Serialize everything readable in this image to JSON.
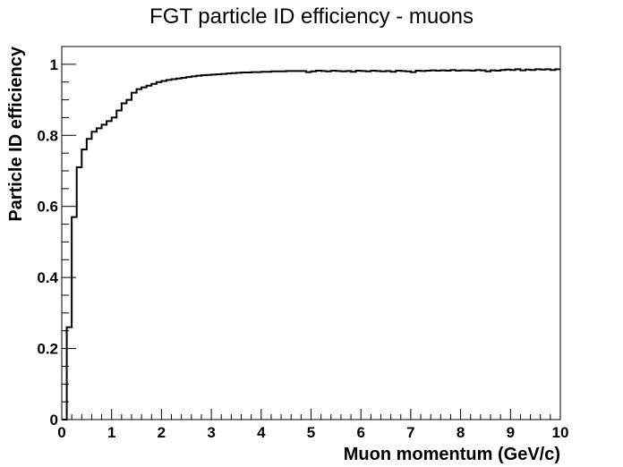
{
  "chart_data": {
    "type": "line",
    "title": "FGT particle ID efficiency - muons",
    "xlabel": "Muon momentum (GeV/c)",
    "ylabel": "Particle ID efficiency",
    "xlim": [
      0,
      10
    ],
    "ylim": [
      0,
      1.05
    ],
    "x_ticks": [
      "0",
      "1",
      "2",
      "3",
      "4",
      "5",
      "6",
      "7",
      "8",
      "9",
      "10"
    ],
    "y_ticks": [
      "0",
      "0.2",
      "0.4",
      "0.6",
      "0.8",
      "1"
    ],
    "grid": false,
    "bin_width": 0.1,
    "series": [
      {
        "values": [
          0.0,
          0.26,
          0.57,
          0.71,
          0.76,
          0.79,
          0.81,
          0.82,
          0.83,
          0.84,
          0.85,
          0.87,
          0.89,
          0.9,
          0.92,
          0.93,
          0.935,
          0.94,
          0.945,
          0.95,
          0.953,
          0.956,
          0.958,
          0.96,
          0.962,
          0.964,
          0.966,
          0.968,
          0.969,
          0.97,
          0.971,
          0.972,
          0.973,
          0.974,
          0.975,
          0.976,
          0.977,
          0.977,
          0.978,
          0.978,
          0.979,
          0.979,
          0.98,
          0.98,
          0.98,
          0.981,
          0.981,
          0.981,
          0.981,
          0.978,
          0.98,
          0.982,
          0.981,
          0.98,
          0.982,
          0.981,
          0.98,
          0.981,
          0.979,
          0.982,
          0.981,
          0.98,
          0.982,
          0.981,
          0.98,
          0.981,
          0.979,
          0.982,
          0.981,
          0.98,
          0.978,
          0.982,
          0.981,
          0.982,
          0.983,
          0.982,
          0.983,
          0.982,
          0.984,
          0.982,
          0.983,
          0.983,
          0.982,
          0.984,
          0.983,
          0.98,
          0.983,
          0.982,
          0.984,
          0.985,
          0.984,
          0.986,
          0.983,
          0.985,
          0.984,
          0.986,
          0.985,
          0.986,
          0.984,
          0.986
        ]
      }
    ]
  }
}
